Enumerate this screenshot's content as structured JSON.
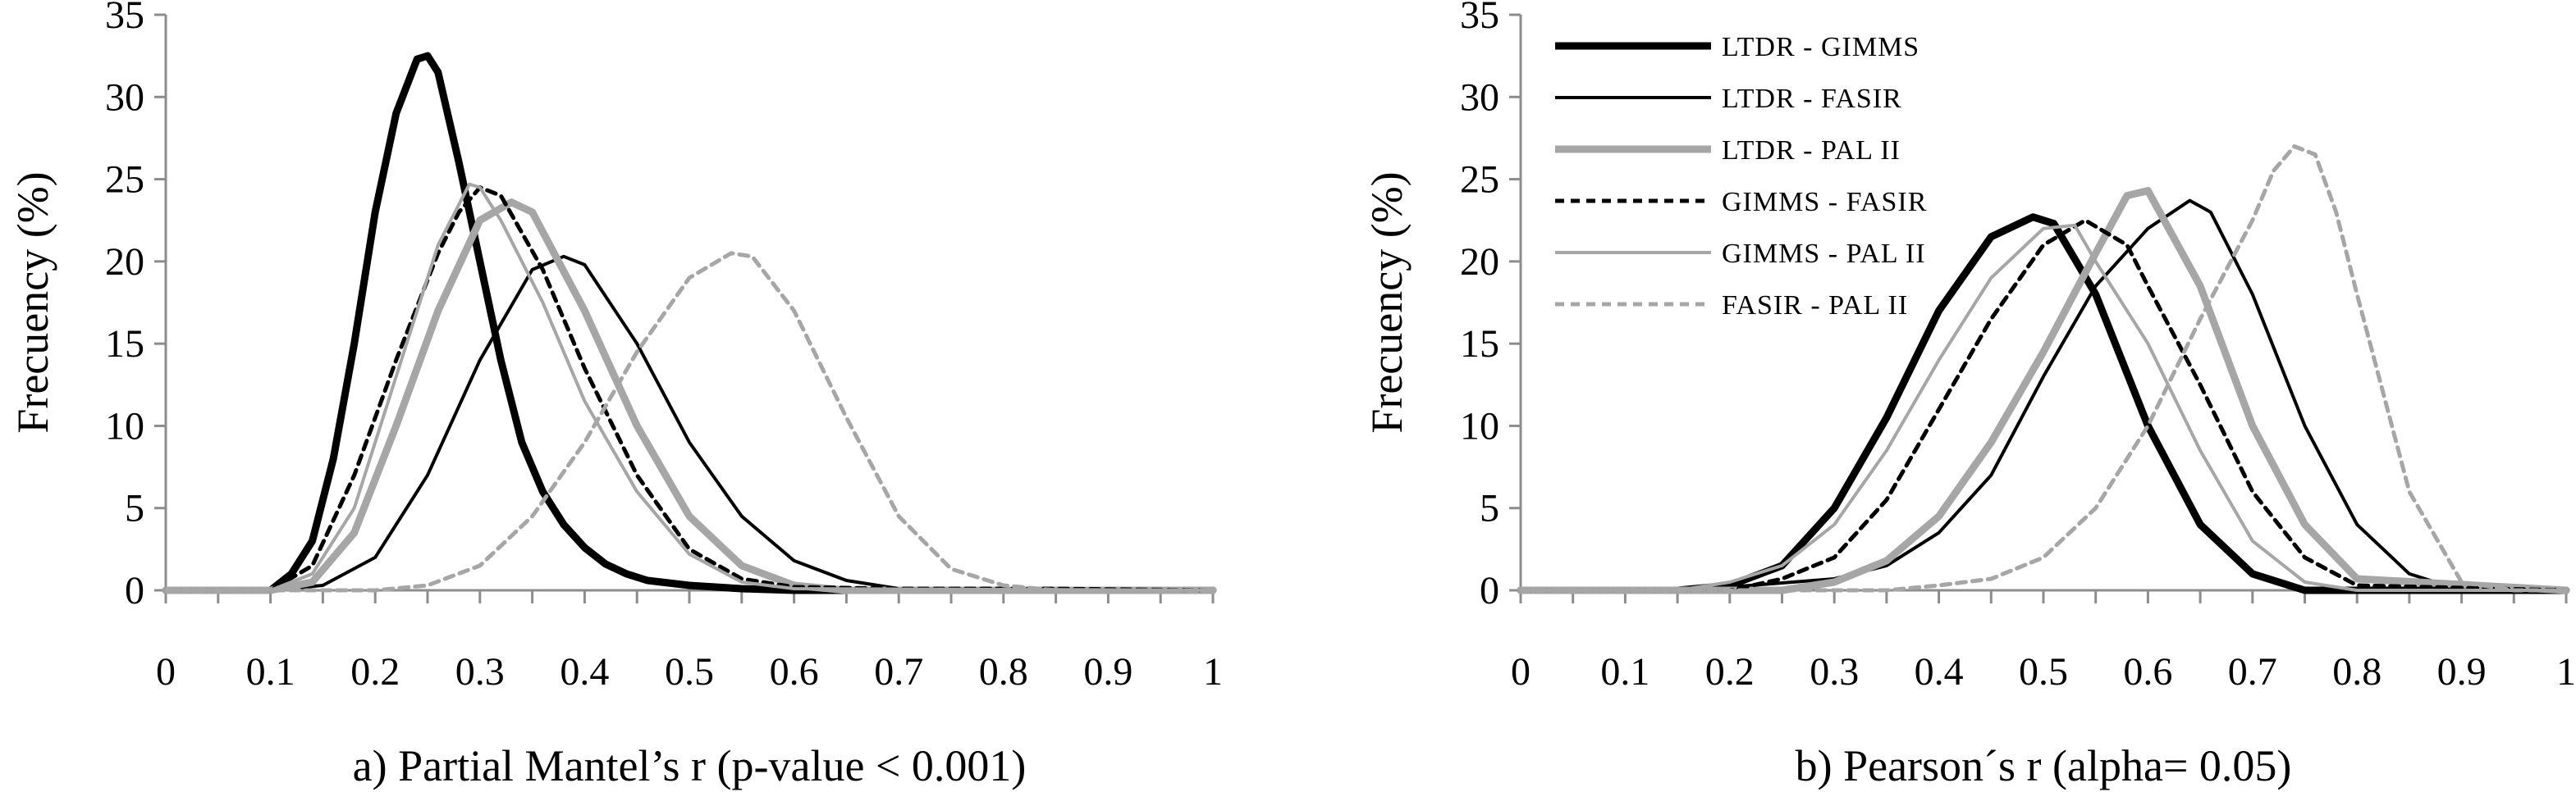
{
  "chart_data": [
    {
      "type": "line",
      "title": "",
      "xlabel": "a) Partial Mantel’s r (p-value < 0.001)",
      "ylabel": "Frecuency (%)",
      "xlim": [
        0,
        1
      ],
      "ylim": [
        0,
        35
      ],
      "xticks": [
        0,
        0.05,
        0.1,
        0.15,
        0.2,
        0.25,
        0.3,
        0.35,
        0.4,
        0.45,
        0.5,
        0.55,
        0.6,
        0.65,
        0.7,
        0.75,
        0.8,
        0.85,
        0.9,
        0.95,
        1
      ],
      "xtick_labels": [
        "0",
        "0.1",
        "0.2",
        "0.3",
        "0.4",
        "0.5",
        "0.6",
        "0.7",
        "0.8",
        "0.9",
        "1"
      ],
      "ytick_labels": [
        "0",
        "5",
        "10",
        "15",
        "20",
        "25",
        "30",
        "35"
      ],
      "grid": false,
      "legend": null,
      "series": [
        {
          "name": "LTDR - GIMMS",
          "color": "#000000",
          "style": "thick-solid",
          "x": [
            0,
            0.1,
            0.12,
            0.14,
            0.16,
            0.18,
            0.2,
            0.22,
            0.24,
            0.25,
            0.26,
            0.28,
            0.3,
            0.32,
            0.34,
            0.36,
            0.38,
            0.4,
            0.42,
            0.44,
            0.46,
            0.5,
            0.55,
            0.6,
            1
          ],
          "y": [
            0,
            0,
            1,
            3,
            8,
            15,
            23,
            29,
            32.3,
            32.5,
            31.5,
            26,
            20,
            14,
            9,
            6,
            4,
            2.6,
            1.6,
            1,
            0.6,
            0.3,
            0.1,
            0,
            0
          ]
        },
        {
          "name": "LTDR - FASIR",
          "color": "#000000",
          "style": "thin-solid",
          "x": [
            0,
            0.1,
            0.15,
            0.2,
            0.25,
            0.3,
            0.35,
            0.38,
            0.4,
            0.45,
            0.5,
            0.55,
            0.6,
            0.65,
            0.7,
            1
          ],
          "y": [
            0,
            0,
            0.3,
            2,
            7,
            14,
            19.5,
            20.3,
            19.8,
            15,
            9,
            4.5,
            1.8,
            0.6,
            0.1,
            0
          ]
        },
        {
          "name": "LTDR - PAL II",
          "color": "#a6a6a6",
          "style": "thick-solid",
          "x": [
            0,
            0.1,
            0.14,
            0.18,
            0.22,
            0.26,
            0.3,
            0.33,
            0.35,
            0.4,
            0.45,
            0.5,
            0.55,
            0.6,
            0.65,
            1
          ],
          "y": [
            0,
            0,
            0.5,
            3.5,
            10,
            17,
            22.5,
            23.6,
            23,
            17,
            10,
            4.5,
            1.5,
            0.3,
            0,
            0
          ]
        },
        {
          "name": "GIMMS - FASIR",
          "color": "#000000",
          "style": "dotted",
          "x": [
            0,
            0.1,
            0.14,
            0.18,
            0.22,
            0.26,
            0.28,
            0.3,
            0.32,
            0.36,
            0.4,
            0.45,
            0.5,
            0.55,
            0.6,
            0.7,
            0.84,
            1
          ],
          "y": [
            0,
            0,
            1.5,
            7,
            14,
            20.5,
            23,
            24.5,
            24,
            19.5,
            13.5,
            7,
            2.5,
            0.7,
            0.2,
            0.1,
            0.1,
            0
          ]
        },
        {
          "name": "GIMMS - PAL II",
          "color": "#a6a6a6",
          "style": "thin-solid",
          "x": [
            0,
            0.1,
            0.14,
            0.18,
            0.22,
            0.26,
            0.29,
            0.3,
            0.32,
            0.36,
            0.4,
            0.45,
            0.5,
            0.55,
            0.6,
            1
          ],
          "y": [
            0,
            0,
            1,
            5,
            13,
            21,
            24.7,
            24.5,
            22.5,
            17.5,
            11.5,
            6,
            2.2,
            0.5,
            0.1,
            0
          ]
        },
        {
          "name": "FASIR - PAL II",
          "color": "#a6a6a6",
          "style": "dotted",
          "x": [
            0,
            0.2,
            0.25,
            0.3,
            0.35,
            0.4,
            0.45,
            0.5,
            0.54,
            0.56,
            0.6,
            0.65,
            0.7,
            0.75,
            0.8,
            0.85,
            1
          ],
          "y": [
            0,
            0,
            0.3,
            1.5,
            4.5,
            9,
            14.5,
            19,
            20.5,
            20.3,
            17,
            10.5,
            4.5,
            1.3,
            0.3,
            0,
            0
          ]
        }
      ]
    },
    {
      "type": "line",
      "title": "",
      "xlabel": "b) Pearson´s r (alpha= 0.05)",
      "ylabel": "Frecuency (%)",
      "xlim": [
        0,
        1
      ],
      "ylim": [
        0,
        35
      ],
      "xticks": [
        0,
        0.05,
        0.1,
        0.15,
        0.2,
        0.25,
        0.3,
        0.35,
        0.4,
        0.45,
        0.5,
        0.55,
        0.6,
        0.65,
        0.7,
        0.75,
        0.8,
        0.85,
        0.9,
        0.95,
        1
      ],
      "xtick_labels": [
        "0",
        "0.1",
        "0.2",
        "0.3",
        "0.4",
        "0.5",
        "0.6",
        "0.7",
        "0.8",
        "0.9",
        "1"
      ],
      "ytick_labels": [
        "0",
        "5",
        "10",
        "15",
        "20",
        "25",
        "30",
        "35"
      ],
      "grid": false,
      "legend": "top-left",
      "series": [
        {
          "name": "LTDR - GIMMS",
          "color": "#000000",
          "style": "thick-solid",
          "x": [
            0,
            0.15,
            0.2,
            0.25,
            0.3,
            0.35,
            0.4,
            0.45,
            0.49,
            0.51,
            0.55,
            0.6,
            0.65,
            0.7,
            0.75,
            1
          ],
          "y": [
            0,
            0,
            0.3,
            1.5,
            5,
            10.5,
            17,
            21.5,
            22.7,
            22.3,
            18,
            10,
            4,
            1,
            0,
            0
          ]
        },
        {
          "name": "LTDR - FASIR",
          "color": "#000000",
          "style": "thin-solid",
          "x": [
            0,
            0.15,
            0.2,
            0.3,
            0.35,
            0.4,
            0.45,
            0.5,
            0.55,
            0.6,
            0.64,
            0.66,
            0.7,
            0.75,
            0.8,
            0.85,
            0.9,
            1
          ],
          "y": [
            0,
            0,
            0.2,
            0.7,
            1.5,
            3.5,
            7,
            13,
            18.5,
            22,
            23.7,
            23,
            18,
            10,
            4,
            1,
            0,
            0
          ]
        },
        {
          "name": "LTDR - PAL II",
          "color": "#a6a6a6",
          "style": "thick-solid",
          "x": [
            0,
            0.25,
            0.3,
            0.35,
            0.4,
            0.45,
            0.5,
            0.55,
            0.58,
            0.6,
            0.65,
            0.7,
            0.75,
            0.8,
            1
          ],
          "y": [
            0,
            0,
            0.5,
            1.8,
            4.5,
            9,
            14.5,
            20.5,
            24,
            24.3,
            18.5,
            10,
            4,
            0.7,
            0
          ]
        },
        {
          "name": "GIMMS - FASIR",
          "color": "#000000",
          "style": "dotted",
          "x": [
            0,
            0.2,
            0.25,
            0.3,
            0.35,
            0.4,
            0.45,
            0.5,
            0.54,
            0.58,
            0.6,
            0.65,
            0.7,
            0.75,
            0.8,
            1
          ],
          "y": [
            0,
            0,
            0.7,
            2,
            5.5,
            11,
            16.5,
            21,
            22.5,
            21,
            18.5,
            12.5,
            6,
            2,
            0.3,
            0
          ]
        },
        {
          "name": "GIMMS - PAL II",
          "color": "#a6a6a6",
          "style": "thin-solid",
          "x": [
            0,
            0.15,
            0.2,
            0.25,
            0.3,
            0.35,
            0.4,
            0.45,
            0.5,
            0.53,
            0.55,
            0.6,
            0.65,
            0.7,
            0.75,
            0.8,
            1
          ],
          "y": [
            0,
            0,
            0.5,
            1.5,
            4,
            8.5,
            14,
            19,
            22,
            22.2,
            20,
            15,
            8.5,
            3,
            0.5,
            0,
            0
          ]
        },
        {
          "name": "FASIR - PAL II",
          "color": "#a6a6a6",
          "style": "dotted",
          "x": [
            0,
            0.35,
            0.4,
            0.45,
            0.5,
            0.55,
            0.6,
            0.65,
            0.7,
            0.72,
            0.74,
            0.76,
            0.78,
            0.8,
            0.85,
            0.9,
            0.95,
            1
          ],
          "y": [
            0,
            0,
            0.3,
            0.7,
            2,
            5,
            10,
            16.5,
            22.5,
            25.5,
            27,
            26.5,
            23,
            18,
            6,
            0.5,
            0,
            0
          ]
        }
      ]
    }
  ]
}
